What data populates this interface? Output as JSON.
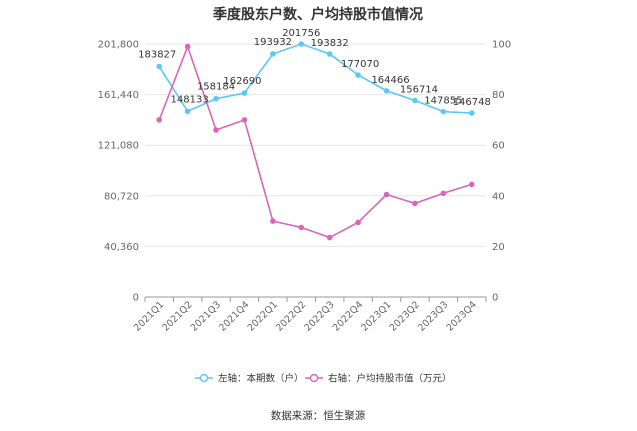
{
  "chart_data": {
    "type": "line",
    "title": "季度股东户数、户均持股市值情况",
    "categories": [
      "2021Q1",
      "2021Q2",
      "2021Q3",
      "2021Q4",
      "2022Q1",
      "2022Q2",
      "2022Q3",
      "2022Q4",
      "2023Q1",
      "2023Q2",
      "2023Q3",
      "2023Q4"
    ],
    "series": [
      {
        "name": "左轴：本期数（户）",
        "axis": "left",
        "color": "#5bc8f5",
        "values": [
          183827,
          148133,
          158184,
          162690,
          193932,
          201756,
          193832,
          177070,
          164466,
          156714,
          147855,
          146748
        ],
        "labels": [
          "183827",
          "148133",
          "158184",
          "162690",
          "193932",
          "201756",
          "193832",
          "177070",
          "164466",
          "156714",
          "147855",
          "146748"
        ]
      },
      {
        "name": "右轴：户均持股市值（万元）",
        "axis": "right",
        "color": "#d966b8",
        "values": [
          70,
          99,
          66,
          70,
          30,
          27.5,
          23.5,
          29.5,
          40.5,
          37,
          41,
          44.5
        ]
      }
    ],
    "y_left": {
      "min": 0,
      "max": 201800,
      "ticks": [
        "0",
        "40,360",
        "80,720",
        "121,080",
        "161,440",
        "201,800"
      ]
    },
    "y_right": {
      "min": 0,
      "max": 100,
      "ticks": [
        "0",
        "20",
        "40",
        "60",
        "80",
        "100"
      ]
    },
    "grid": "horizontal",
    "legend_position": "bottom"
  },
  "footer": {
    "source": "数据来源：恒生聚源"
  }
}
